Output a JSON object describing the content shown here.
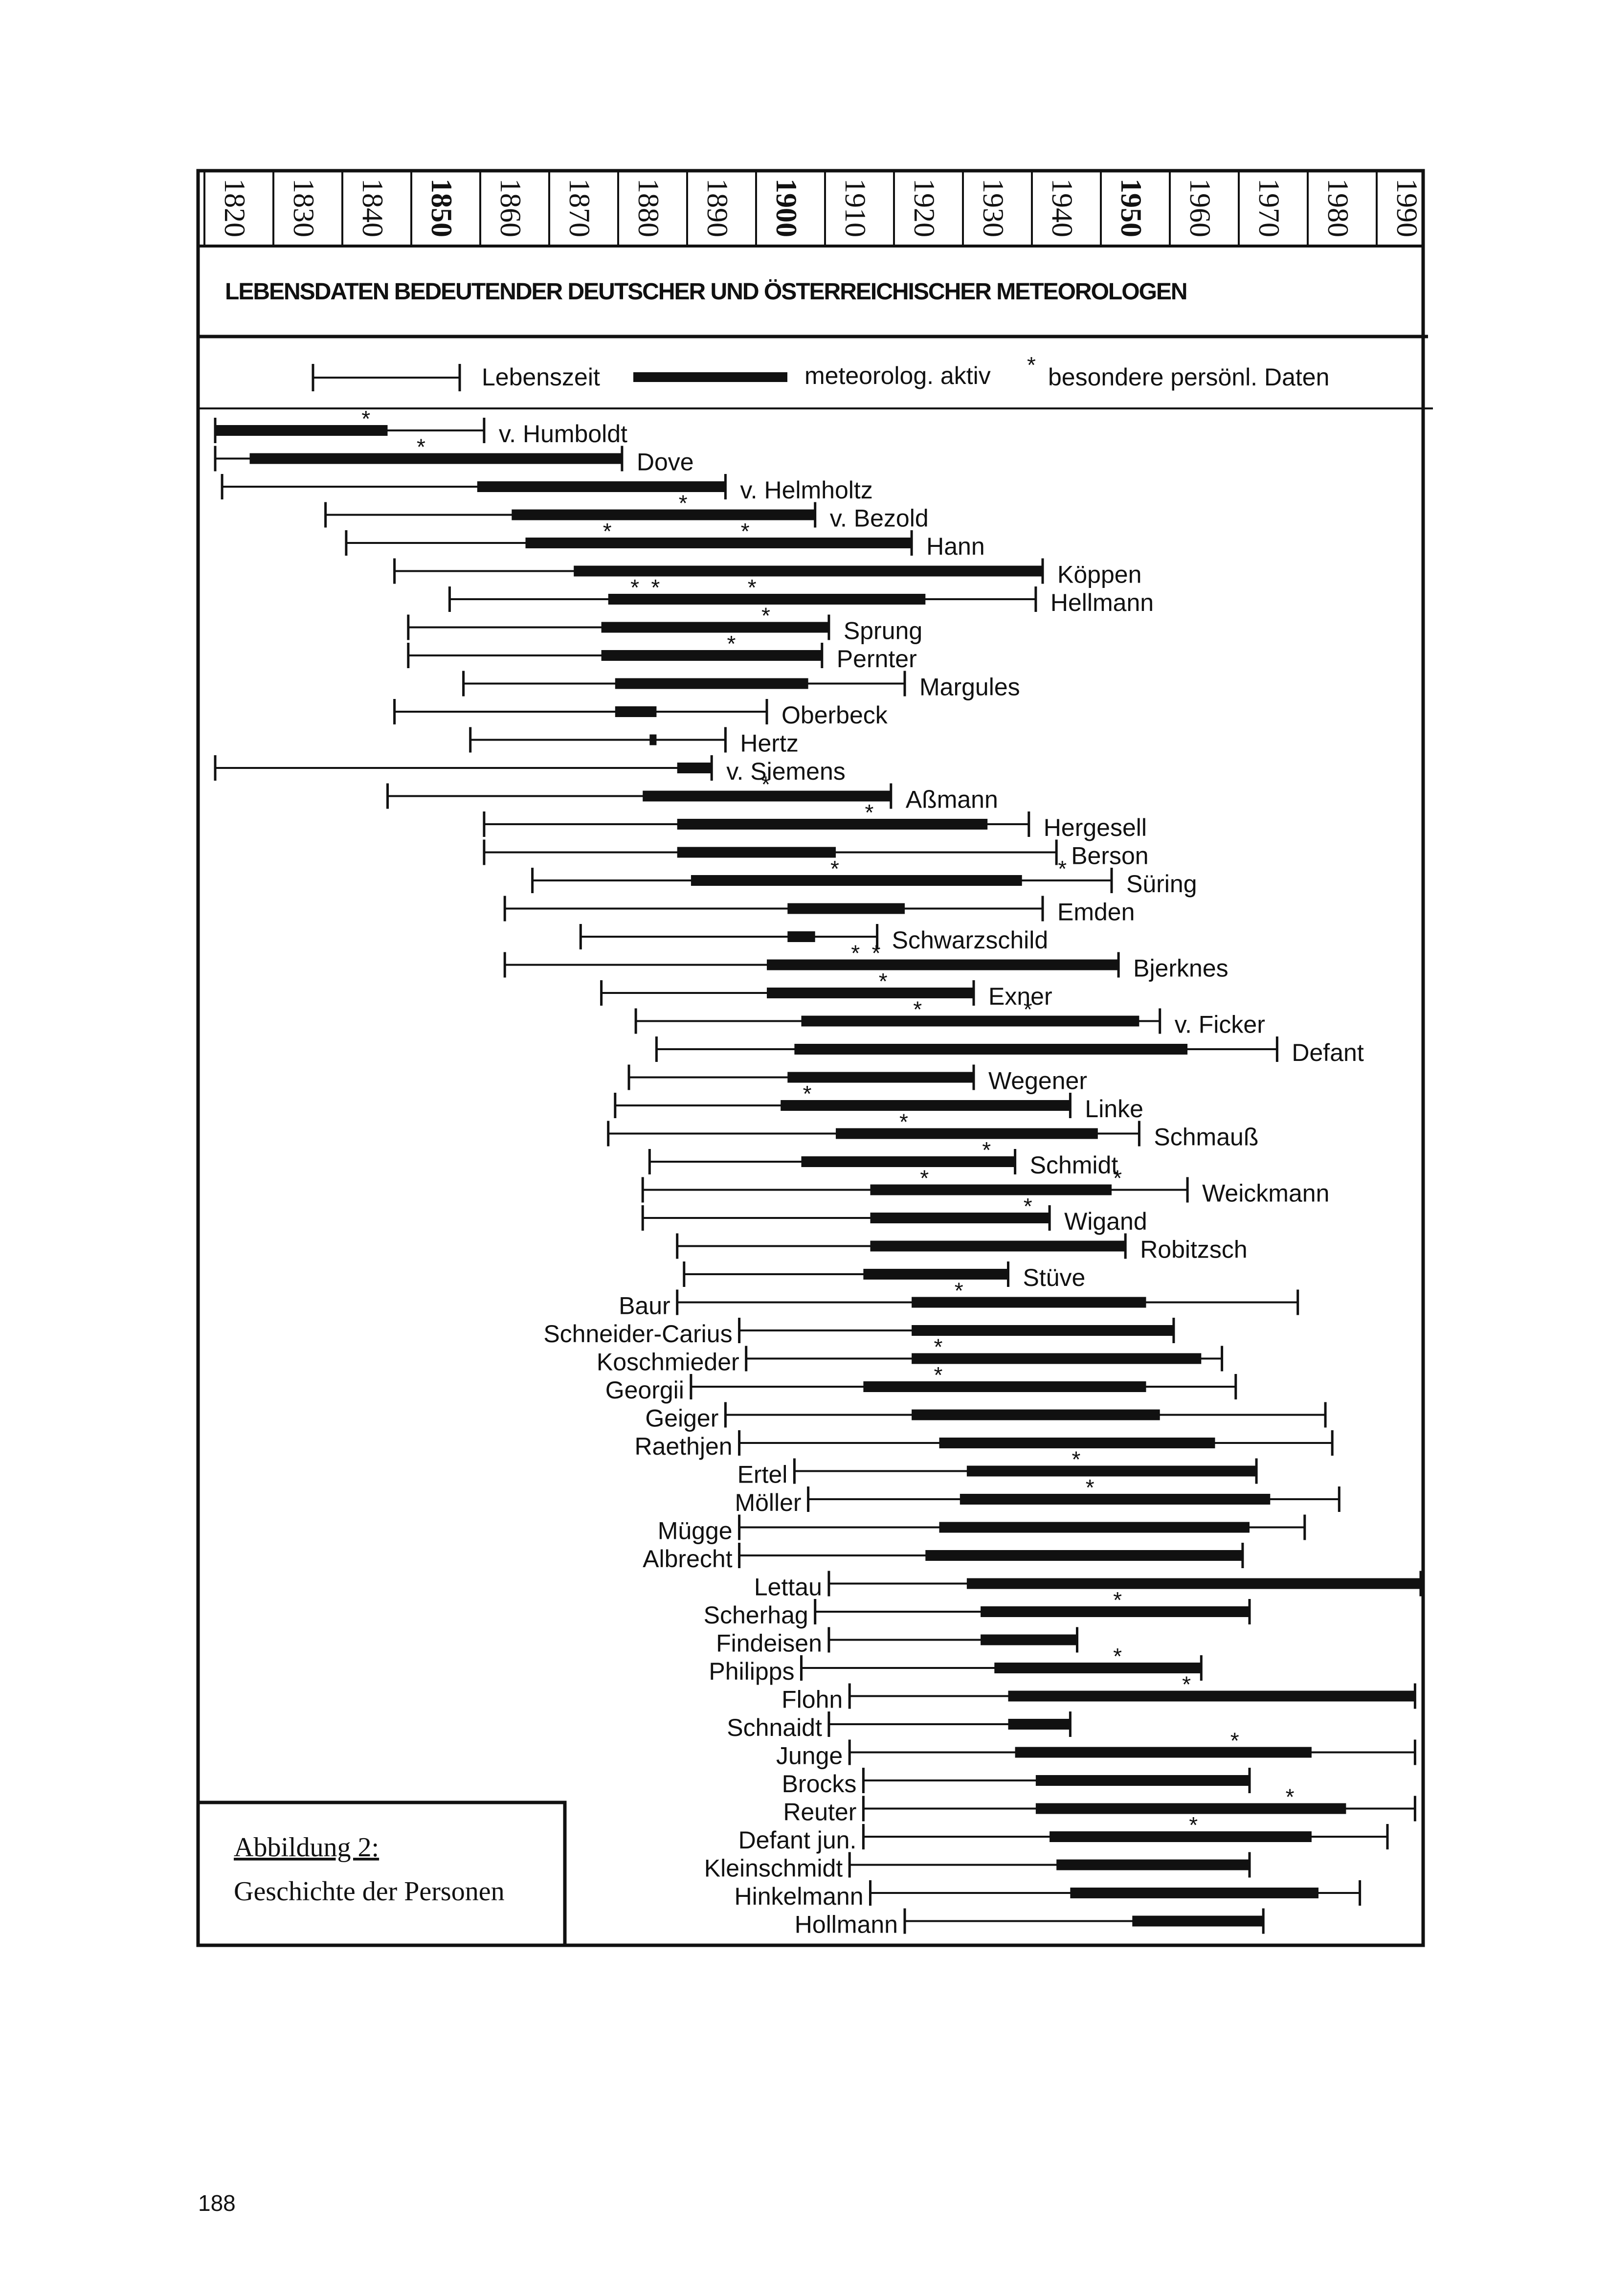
{
  "chart_data": {
    "type": "timeline",
    "title": "LEBENSDATEN BEDEUTENDER DEUTSCHER UND ÖSTERREICHISCHER METEOROLOGEN",
    "xlim": [
      1820,
      1995
    ],
    "x_ticks": [
      1820,
      1830,
      1840,
      1850,
      1860,
      1870,
      1880,
      1890,
      1900,
      1910,
      1920,
      1930,
      1940,
      1950,
      1960,
      1970,
      1980,
      1990
    ],
    "x_ticks_bold": [
      1850,
      1900,
      1950
    ],
    "legend": {
      "life": "Lebenszeit",
      "active": "meteorolog. aktiv",
      "star": "*",
      "personal": "besondere persönl. Daten"
    },
    "series": [
      {
        "name": "v. Humboldt",
        "life": [
          1820,
          1859
        ],
        "active": [
          1820,
          1845
        ],
        "stars": [
          1842
        ],
        "label_side": "right"
      },
      {
        "name": "Dove",
        "life": [
          1820,
          1879
        ],
        "active": [
          1825,
          1879
        ],
        "stars": [
          1850
        ],
        "label_side": "right"
      },
      {
        "name": "v. Helmholtz",
        "life": [
          1821,
          1894
        ],
        "active": [
          1858,
          1894
        ],
        "stars": [],
        "label_side": "right"
      },
      {
        "name": "v. Bezold",
        "life": [
          1836,
          1907
        ],
        "active": [
          1863,
          1907
        ],
        "stars": [
          1888
        ],
        "label_side": "right"
      },
      {
        "name": "Hann",
        "life": [
          1839,
          1921
        ],
        "active": [
          1865,
          1921
        ],
        "stars": [
          1877,
          1897
        ],
        "label_side": "right"
      },
      {
        "name": "Köppen",
        "life": [
          1846,
          1940
        ],
        "active": [
          1872,
          1940
        ],
        "stars": [],
        "label_side": "right"
      },
      {
        "name": "Hellmann",
        "life": [
          1854,
          1939
        ],
        "active": [
          1877,
          1923
        ],
        "stars": [
          1881,
          1884,
          1898
        ],
        "label_side": "right"
      },
      {
        "name": "Sprung",
        "life": [
          1848,
          1909
        ],
        "active": [
          1876,
          1909
        ],
        "stars": [
          1900
        ],
        "label_side": "right"
      },
      {
        "name": "Pernter",
        "life": [
          1848,
          1908
        ],
        "active": [
          1876,
          1908
        ],
        "stars": [
          1895
        ],
        "label_side": "right"
      },
      {
        "name": "Margules",
        "life": [
          1856,
          1920
        ],
        "active": [
          1878,
          1906
        ],
        "stars": [],
        "label_side": "right"
      },
      {
        "name": "Oberbeck",
        "life": [
          1846,
          1900
        ],
        "active": [
          1878,
          1884
        ],
        "stars": [],
        "label_side": "right"
      },
      {
        "name": "Hertz",
        "life": [
          1857,
          1894
        ],
        "active": [
          1883,
          1884
        ],
        "stars": [],
        "label_side": "right"
      },
      {
        "name": "v. Siemens",
        "life": [
          1820,
          1892
        ],
        "active": [
          1887,
          1892
        ],
        "stars": [],
        "label_side": "right"
      },
      {
        "name": "Aßmann",
        "life": [
          1845,
          1918
        ],
        "active": [
          1882,
          1918
        ],
        "stars": [
          1900
        ],
        "label_side": "right"
      },
      {
        "name": "Hergesell",
        "life": [
          1859,
          1938
        ],
        "active": [
          1887,
          1932
        ],
        "stars": [
          1915
        ],
        "label_side": "right"
      },
      {
        "name": "Berson",
        "life": [
          1859,
          1942
        ],
        "active": [
          1887,
          1910
        ],
        "stars": [],
        "label_side": "right"
      },
      {
        "name": "Süring",
        "life": [
          1866,
          1950
        ],
        "active": [
          1889,
          1937
        ],
        "stars": [
          1910,
          1943
        ],
        "label_side": "right"
      },
      {
        "name": "Emden",
        "life": [
          1862,
          1940
        ],
        "active": [
          1903,
          1920
        ],
        "stars": [],
        "label_side": "right"
      },
      {
        "name": "Schwarzschild",
        "life": [
          1873,
          1916
        ],
        "active": [
          1903,
          1907
        ],
        "stars": [],
        "label_side": "right"
      },
      {
        "name": "Bjerknes",
        "life": [
          1862,
          1951
        ],
        "active": [
          1900,
          1951
        ],
        "stars": [
          1913,
          1916
        ],
        "label_side": "right"
      },
      {
        "name": "Exner",
        "life": [
          1876,
          1930
        ],
        "active": [
          1900,
          1930
        ],
        "stars": [
          1917
        ],
        "label_side": "right"
      },
      {
        "name": "v. Ficker",
        "life": [
          1881,
          1957
        ],
        "active": [
          1905,
          1954
        ],
        "stars": [
          1922,
          1938
        ],
        "label_side": "right"
      },
      {
        "name": "Defant",
        "life": [
          1884,
          1974
        ],
        "active": [
          1904,
          1961
        ],
        "stars": [],
        "label_side": "right"
      },
      {
        "name": "Wegener",
        "life": [
          1880,
          1930
        ],
        "active": [
          1903,
          1930
        ],
        "stars": [],
        "label_side": "right"
      },
      {
        "name": "Linke",
        "life": [
          1878,
          1944
        ],
        "active": [
          1902,
          1944
        ],
        "stars": [
          1906
        ],
        "label_side": "right"
      },
      {
        "name": "Schmauß",
        "life": [
          1877,
          1954
        ],
        "active": [
          1910,
          1948
        ],
        "stars": [
          1920
        ],
        "label_side": "right"
      },
      {
        "name": "Schmidt",
        "life": [
          1883,
          1936
        ],
        "active": [
          1905,
          1936
        ],
        "stars": [
          1932
        ],
        "label_side": "right"
      },
      {
        "name": "Weickmann",
        "life": [
          1882,
          1961
        ],
        "active": [
          1915,
          1950
        ],
        "stars": [
          1923,
          1951
        ],
        "label_side": "right"
      },
      {
        "name": "Wigand",
        "life": [
          1882,
          1941
        ],
        "active": [
          1915,
          1941
        ],
        "stars": [
          1938
        ],
        "label_side": "right"
      },
      {
        "name": "Robitzsch",
        "life": [
          1887,
          1952
        ],
        "active": [
          1915,
          1952
        ],
        "stars": [],
        "label_side": "right"
      },
      {
        "name": "Stüve",
        "life": [
          1888,
          1935
        ],
        "active": [
          1914,
          1935
        ],
        "stars": [],
        "label_side": "right"
      },
      {
        "name": "Baur",
        "life": [
          1887,
          1977
        ],
        "active": [
          1921,
          1955
        ],
        "stars": [
          1928
        ],
        "label_side": "left"
      },
      {
        "name": "Schneider-Carius",
        "life": [
          1896,
          1959
        ],
        "active": [
          1921,
          1959
        ],
        "stars": [],
        "label_side": "left"
      },
      {
        "name": "Koschmieder",
        "life": [
          1897,
          1966
        ],
        "active": [
          1921,
          1963
        ],
        "stars": [
          1925
        ],
        "label_side": "left"
      },
      {
        "name": "Georgii",
        "life": [
          1889,
          1968
        ],
        "active": [
          1914,
          1955
        ],
        "stars": [
          1925
        ],
        "label_side": "left"
      },
      {
        "name": "Geiger",
        "life": [
          1894,
          1981
        ],
        "active": [
          1921,
          1957
        ],
        "stars": [],
        "label_side": "left"
      },
      {
        "name": "Raethjen",
        "life": [
          1896,
          1982
        ],
        "active": [
          1925,
          1965
        ],
        "stars": [],
        "label_side": "left"
      },
      {
        "name": "Ertel",
        "life": [
          1904,
          1971
        ],
        "active": [
          1929,
          1971
        ],
        "stars": [
          1945
        ],
        "label_side": "left"
      },
      {
        "name": "Möller",
        "life": [
          1906,
          1983
        ],
        "active": [
          1928,
          1973
        ],
        "stars": [
          1947
        ],
        "label_side": "left"
      },
      {
        "name": "Mügge",
        "life": [
          1896,
          1978
        ],
        "active": [
          1925,
          1970
        ],
        "stars": [],
        "label_side": "left"
      },
      {
        "name": "Albrecht",
        "life": [
          1896,
          1969
        ],
        "active": [
          1923,
          1969
        ],
        "stars": [],
        "label_side": "left"
      },
      {
        "name": "Lettau",
        "life": [
          1909,
          1995
        ],
        "active": [
          1929,
          1995
        ],
        "stars": [],
        "label_side": "left"
      },
      {
        "name": "Scherhag",
        "life": [
          1907,
          1970
        ],
        "active": [
          1931,
          1970
        ],
        "stars": [
          1951
        ],
        "label_side": "left"
      },
      {
        "name": "Findeisen",
        "life": [
          1909,
          1945
        ],
        "active": [
          1931,
          1945
        ],
        "stars": [],
        "label_side": "left"
      },
      {
        "name": "Philipps",
        "life": [
          1905,
          1963
        ],
        "active": [
          1933,
          1963
        ],
        "stars": [
          1951
        ],
        "label_side": "left"
      },
      {
        "name": "Flohn",
        "life": [
          1912,
          1994
        ],
        "active": [
          1935,
          1994
        ],
        "stars": [
          1961
        ],
        "label_side": "left"
      },
      {
        "name": "Schnaidt",
        "life": [
          1909,
          1944
        ],
        "active": [
          1935,
          1944
        ],
        "stars": [],
        "label_side": "left"
      },
      {
        "name": "Junge",
        "life": [
          1912,
          1994
        ],
        "active": [
          1936,
          1979
        ],
        "stars": [
          1968
        ],
        "label_side": "left"
      },
      {
        "name": "Brocks",
        "life": [
          1914,
          1970
        ],
        "active": [
          1939,
          1970
        ],
        "stars": [],
        "label_side": "left"
      },
      {
        "name": "Reuter",
        "life": [
          1914,
          1994
        ],
        "active": [
          1939,
          1984
        ],
        "stars": [
          1976
        ],
        "label_side": "left"
      },
      {
        "name": "Defant jun.",
        "life": [
          1914,
          1990
        ],
        "active": [
          1941,
          1979
        ],
        "stars": [
          1962
        ],
        "label_side": "left"
      },
      {
        "name": "Kleinschmidt",
        "life": [
          1912,
          1970
        ],
        "active": [
          1942,
          1970
        ],
        "stars": [],
        "label_side": "left"
      },
      {
        "name": "Hinkelmann",
        "life": [
          1915,
          1986
        ],
        "active": [
          1944,
          1980
        ],
        "stars": [],
        "label_side": "left"
      },
      {
        "name": "Hollmann",
        "life": [
          1920,
          1972
        ],
        "active": [
          1953,
          1972
        ],
        "stars": [],
        "label_side": "left"
      }
    ]
  },
  "caption": {
    "title": "Abbildung 2:",
    "subtitle": "Geschichte der Personen"
  },
  "page_number": "188"
}
